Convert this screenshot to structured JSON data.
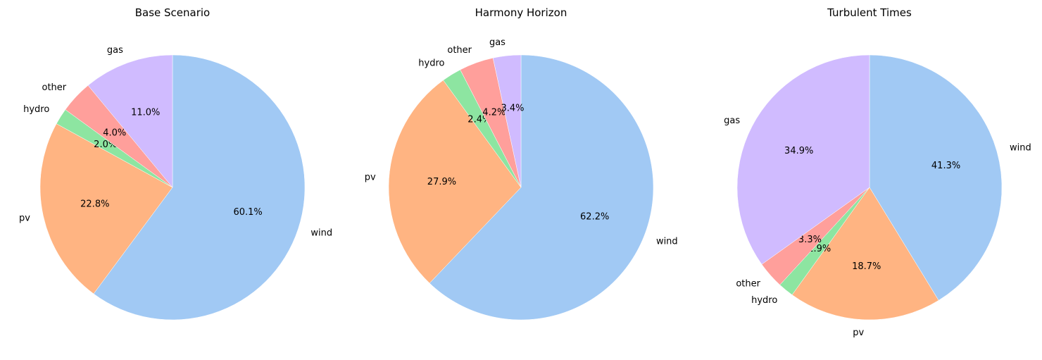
{
  "chart_data": [
    {
      "type": "pie",
      "title": "Base Scenario",
      "start_angle_deg": 90,
      "direction": "clockwise",
      "slices": [
        {
          "label": "wind",
          "value": 60.1,
          "pct_label": "60.1%",
          "color": "#a1c9f4"
        },
        {
          "label": "pv",
          "value": 22.8,
          "pct_label": "22.8%",
          "color": "#ffb482"
        },
        {
          "label": "hydro",
          "value": 2.0,
          "pct_label": "2.0%",
          "color": "#8de5a1"
        },
        {
          "label": "other",
          "value": 4.0,
          "pct_label": "4.0%",
          "color": "#ff9f9b"
        },
        {
          "label": "gas",
          "value": 11.0,
          "pct_label": "11.0%",
          "color": "#d0bbff"
        }
      ]
    },
    {
      "type": "pie",
      "title": "Harmony Horizon",
      "start_angle_deg": 90,
      "direction": "clockwise",
      "slices": [
        {
          "label": "wind",
          "value": 62.2,
          "pct_label": "62.2%",
          "color": "#a1c9f4"
        },
        {
          "label": "pv",
          "value": 27.9,
          "pct_label": "27.9%",
          "color": "#ffb482"
        },
        {
          "label": "hydro",
          "value": 2.4,
          "pct_label": "2.4%",
          "color": "#8de5a1"
        },
        {
          "label": "other",
          "value": 4.2,
          "pct_label": "4.2%",
          "color": "#ff9f9b"
        },
        {
          "label": "gas",
          "value": 3.4,
          "pct_label": "3.4%",
          "color": "#d0bbff"
        }
      ]
    },
    {
      "type": "pie",
      "title": "Turbulent Times",
      "start_angle_deg": 90,
      "direction": "clockwise",
      "slices": [
        {
          "label": "wind",
          "value": 41.3,
          "pct_label": "41.3%",
          "color": "#a1c9f4"
        },
        {
          "label": "pv",
          "value": 18.7,
          "pct_label": "18.7%",
          "color": "#ffb482"
        },
        {
          "label": "hydro",
          "value": 1.9,
          "pct_label": "1.9%",
          "color": "#8de5a1"
        },
        {
          "label": "other",
          "value": 3.3,
          "pct_label": "3.3%",
          "color": "#ff9f9b"
        },
        {
          "label": "gas",
          "value": 34.9,
          "pct_label": "34.9%",
          "color": "#d0bbff"
        }
      ]
    }
  ]
}
